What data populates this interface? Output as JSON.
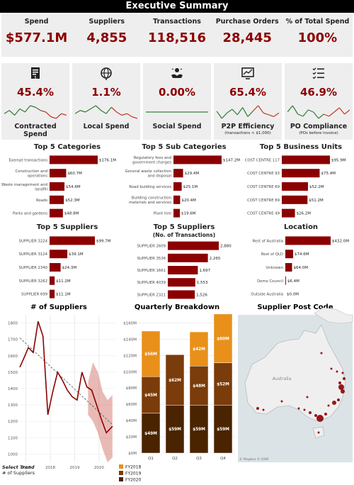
{
  "title": "Executive Summary",
  "kpis": [
    {
      "label": "Spend",
      "value": "$577.1M"
    },
    {
      "label": "Suppliers",
      "value": "4,855"
    },
    {
      "label": "Transactions",
      "value": "118,516"
    },
    {
      "label": "Purchase Orders",
      "value": "28,445"
    },
    {
      "label": "% of Total Spend",
      "value": "100%"
    }
  ],
  "cards": [
    {
      "name": "Contracted Spend",
      "value": "45.4%",
      "sub": "",
      "icon": "contract-icon",
      "trend": [
        6,
        8,
        5,
        9,
        7,
        11,
        10,
        8,
        7,
        4,
        3,
        6,
        5
      ]
    },
    {
      "name": "Local Spend",
      "value": "1.1%",
      "sub": "",
      "icon": "globe-icon",
      "trend": [
        5,
        7,
        6,
        8,
        10,
        7,
        5,
        9,
        6,
        4,
        5,
        3,
        2
      ]
    },
    {
      "name": "Social Spend",
      "value": "0.00%",
      "sub": "",
      "icon": "hands-icon",
      "trend": [
        5,
        5,
        5,
        5,
        5,
        5,
        5,
        5,
        5,
        5,
        5,
        5,
        5
      ]
    },
    {
      "name": "P2P Efficiency",
      "value": "65.4%",
      "sub": "(transactions < $1,000)",
      "icon": "chart-monitor-icon",
      "trend": [
        7,
        3,
        6,
        8,
        5,
        9,
        4,
        7,
        10,
        6,
        5,
        4,
        6
      ]
    },
    {
      "name": "PO Compliance",
      "value": "46.9%",
      "sub": "(POs before invoice)",
      "icon": "checklist-icon",
      "trend": [
        6,
        9,
        5,
        4,
        7,
        6,
        3,
        5,
        4,
        6,
        8,
        5,
        7
      ]
    }
  ],
  "colors": {
    "primary": "#8b0000",
    "fy2018": "#e8901a",
    "fy2019": "#7a3c0a",
    "fy2020": "#4a2400",
    "panel": "#eeeeee"
  },
  "chart_data": [
    {
      "type": "bar",
      "title": "Top 5 Categories",
      "categories": [
        "Exempt transactions",
        "Construction and operations",
        "Waste management and landfill",
        "Roads",
        "Parks and gardens"
      ],
      "values": [
        176.1,
        60.7,
        54.6,
        52.3,
        48.8
      ],
      "labels": [
        "$176.1M",
        "$60.7M",
        "$54.6M",
        "$52.3M",
        "$48.8M"
      ]
    },
    {
      "type": "bar",
      "title": "Top 5 Sub Categories",
      "categories": [
        "Regulatory fees and government charges",
        "General waste collection and disposal",
        "Road building services",
        "Building construction materials and services",
        "Plant hire"
      ],
      "values": [
        147.2,
        29.4,
        25.1,
        20.4,
        19.6
      ],
      "labels": [
        "$147.2M",
        "$29.4M",
        "$25.1M",
        "$20.4M",
        "$19.6M"
      ]
    },
    {
      "type": "bar",
      "title": "Top 5 Business Units",
      "categories": [
        "COST CENTRE 117",
        "COST CENTRE 93",
        "COST CENTRE 69",
        "COST CENTRE 89",
        "COST CENTRE 49"
      ],
      "values": [
        95.9,
        75.4,
        52.2,
        51.2,
        26.2
      ],
      "labels": [
        "$95.9M",
        "$75.4M",
        "$52.2M",
        "$51.2M",
        "$26.2M"
      ]
    },
    {
      "type": "bar",
      "title": "Top 5 Suppliers",
      "categories": [
        "SUPPLIER 3224",
        "SUPPLIER 3124",
        "SUPPLIER 2340",
        "SUPPLIER 3262",
        "SUPPLIER 699"
      ],
      "values": [
        99.7,
        39.1,
        24.3,
        11.2,
        11.1
      ],
      "labels": [
        "$99.7M",
        "$39.1M",
        "$24.3M",
        "$11.2M",
        "$11.1M"
      ]
    },
    {
      "type": "bar",
      "title": "Top 5 Suppliers",
      "subtitle": "(No. of Transactions)",
      "categories": [
        "SUPPLIER 2609",
        "SUPPLIER 3536",
        "SUPPLIER 1661",
        "SUPPLIER 4039",
        "SUPPLIER 2321"
      ],
      "values": [
        2880,
        2265,
        1697,
        1553,
        1526
      ],
      "labels": [
        "2,880",
        "2,265",
        "1,697",
        "1,553",
        "1,526"
      ]
    },
    {
      "type": "bar",
      "title": "Location",
      "categories": [
        "Rest of Australia",
        "Rest of QLD",
        "Unknown",
        "Demo Council",
        "Outside Australia"
      ],
      "values": [
        432.0,
        74.6,
        64.0,
        6.4,
        0.0
      ],
      "labels": [
        "$432.0M",
        "$74.6M",
        "$64.0M",
        "$6.4M",
        "$0.0M"
      ]
    },
    {
      "type": "line",
      "title": "# of Suppliers",
      "x": [
        2016.75,
        2016.9,
        2017.1,
        2017.3,
        2017.5,
        2017.7,
        2017.9,
        2018.1,
        2018.3,
        2018.5,
        2018.7,
        2018.9,
        2019.1,
        2019.3,
        2019.5,
        2019.7,
        2019.9,
        2020.1,
        2020.3,
        2020.55
      ],
      "y": [
        1530,
        1580,
        1650,
        1620,
        1810,
        1720,
        1240,
        1380,
        1500,
        1450,
        1390,
        1350,
        1330,
        1500,
        1410,
        1390,
        1300,
        1210,
        1130,
        1170
      ],
      "trend": {
        "x": [
          2016.75,
          2020.55
        ],
        "y": [
          1710,
          1180
        ]
      },
      "band": {
        "x": [
          2019.55,
          2019.75,
          2019.95,
          2020.15,
          2020.35,
          2020.55
        ],
        "upper": [
          1440,
          1560,
          1500,
          1380,
          1330,
          1360
        ],
        "lower": [
          1240,
          1200,
          1130,
          1030,
          950,
          980
        ]
      },
      "xticks": [
        "2017",
        "2018",
        "2019",
        "2020"
      ],
      "yticks": [
        "1000",
        "1100",
        "1200",
        "1300",
        "1400",
        "1500",
        "1600",
        "1700",
        "1800"
      ],
      "ylim": [
        950,
        1850
      ],
      "footer_title": "Select Trend",
      "footer_value": "# of Suppliers"
    },
    {
      "type": "bar",
      "title": "Quarterly Breakdown",
      "categories": [
        "Q1",
        "Q2",
        "Q3",
        "Q4"
      ],
      "series": [
        {
          "name": "FY2020",
          "values": [
            49,
            59,
            59,
            59
          ],
          "labels": [
            "$49M",
            "$59M",
            "$59M",
            "$59M"
          ]
        },
        {
          "name": "FY2019",
          "values": [
            45,
            62,
            48,
            52
          ],
          "labels": [
            "$45M",
            "$62M",
            "$48M",
            "$52M"
          ]
        },
        {
          "name": "FY2018",
          "values": [
            56,
            0,
            42,
            60
          ],
          "labels": [
            "$56M",
            "",
            "$42M",
            "$60M"
          ]
        }
      ],
      "yticks": [
        "$0M",
        "$20M",
        "$40M",
        "$60M",
        "$80M",
        "$100M",
        "$120M",
        "$140M",
        "$160M"
      ],
      "ylim": [
        0,
        170
      ],
      "legend": [
        "FY2018",
        "FY2019",
        "FY2020"
      ]
    },
    {
      "type": "map",
      "title": "Supplier Post Code",
      "map_label": "Australia",
      "attribution": "© Mapbox © OSM"
    }
  ]
}
